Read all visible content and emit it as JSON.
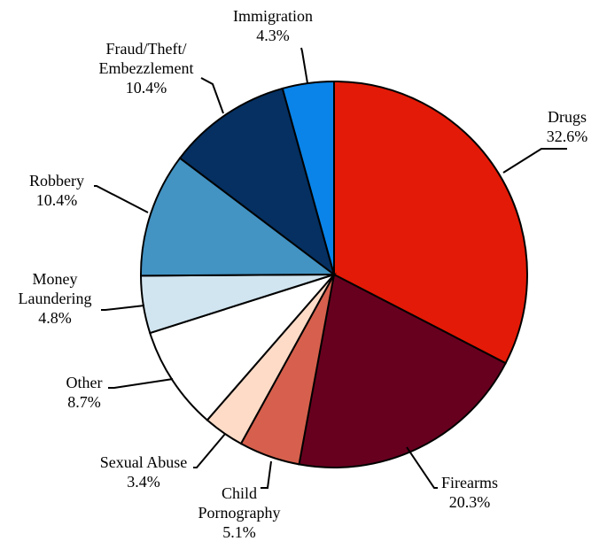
{
  "chart_data": {
    "type": "pie",
    "title": "",
    "start_angle_deg": 0,
    "direction": "clockwise",
    "slices": [
      {
        "label": [
          "Drugs"
        ],
        "value_text": "32.6%",
        "value": 32.6,
        "color": "#e31a07"
      },
      {
        "label": [
          "Firearms"
        ],
        "value_text": "20.3%",
        "value": 20.3,
        "color": "#67001f"
      },
      {
        "label": [
          "Child",
          "Pornography"
        ],
        "value_text": "5.1%",
        "value": 5.1,
        "color": "#d6604d"
      },
      {
        "label": [
          "Sexual Abuse"
        ],
        "value_text": "3.4%",
        "value": 3.4,
        "color": "#fddbc7"
      },
      {
        "label": [
          "Other"
        ],
        "value_text": "8.7%",
        "value": 8.7,
        "color": "#ffffff"
      },
      {
        "label": [
          "Money",
          "Laundering"
        ],
        "value_text": "4.8%",
        "value": 4.8,
        "color": "#d1e5f0"
      },
      {
        "label": [
          "Robbery"
        ],
        "value_text": "10.4%",
        "value": 10.4,
        "color": "#4393c3"
      },
      {
        "label": [
          "Fraud/Theft/",
          "Embezzlement"
        ],
        "value_text": "10.4%",
        "value": 10.4,
        "color": "#053061"
      },
      {
        "label": [
          "Immigration"
        ],
        "value_text": "4.3%",
        "value": 4.3,
        "color": "#0a84e8"
      }
    ]
  }
}
